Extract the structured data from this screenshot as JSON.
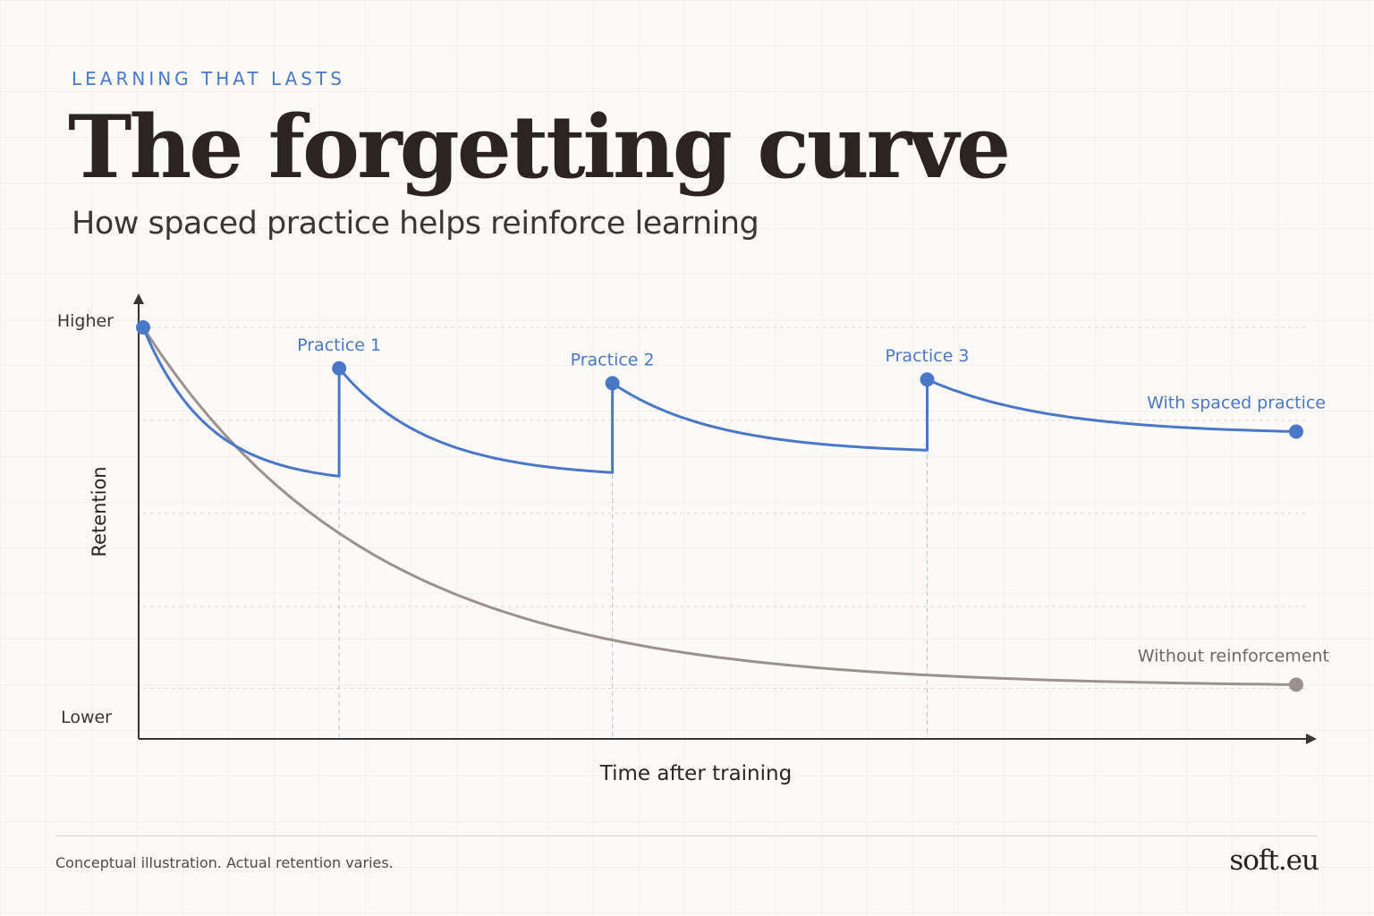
{
  "header": {
    "eyebrow": "LEARNING THAT LASTS",
    "title": "The forgetting curve",
    "subtitle": "How spaced practice helps reinforce learning"
  },
  "chart_data": {
    "type": "line",
    "title": "The forgetting curve",
    "subtitle": "How spaced practice helps reinforce learning",
    "xlabel": "Time after training",
    "ylabel": "Retention",
    "y_tick_labels": [
      "Higher",
      "Lower"
    ],
    "x_range": [
      0,
      10
    ],
    "y_range": [
      0,
      100
    ],
    "grid": true,
    "series": [
      {
        "name": "With spaced practice",
        "color": "#4a78c8",
        "points": [
          [
            0,
            100
          ],
          [
            1.7,
            60
          ],
          [
            1.7,
            89
          ],
          [
            4.07,
            61
          ],
          [
            4.07,
            85
          ],
          [
            6.8,
            67
          ],
          [
            6.8,
            86
          ],
          [
            10,
            72
          ]
        ]
      },
      {
        "name": "Without reinforcement",
        "color": "#9b928d",
        "points": [
          [
            0,
            100
          ],
          [
            10,
            4
          ]
        ]
      }
    ],
    "practice_sessions": [
      {
        "label": "Practice 1",
        "x": 1.7,
        "y": 89
      },
      {
        "label": "Practice 2",
        "x": 4.07,
        "y": 85
      },
      {
        "label": "Practice 3",
        "x": 6.8,
        "y": 86
      }
    ],
    "endpoints": [
      {
        "series": "With spaced practice",
        "x": 10,
        "y": 72
      },
      {
        "series": "Without reinforcement",
        "x": 10,
        "y": 4
      }
    ]
  },
  "footer": {
    "note": "Conceptual illustration. Actual retention varies.",
    "brand": "soft.eu"
  }
}
